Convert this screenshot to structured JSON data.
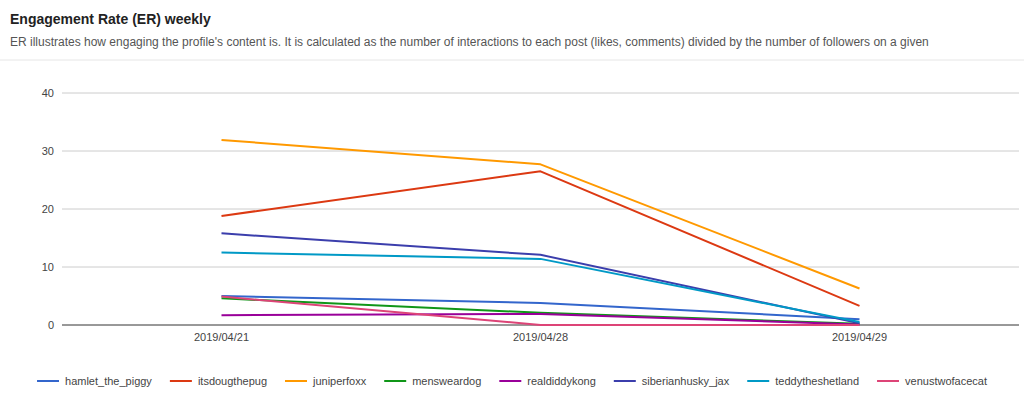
{
  "chart_data": {
    "type": "line",
    "title": "Engagement Rate (ER) weekly",
    "subtitle": "ER illustrates how engaging the profile's content is. It is calculated as the number of interactions to each post (likes, comments) divided by the number of followers on a given",
    "categories": [
      "2019/04/21",
      "2019/04/28",
      "2019/04/29"
    ],
    "series": [
      {
        "name": "hamlet_the_piggy",
        "color": "#3366cc",
        "values": [
          5.0,
          3.8,
          1.0
        ]
      },
      {
        "name": "itsdougthepug",
        "color": "#dc3912",
        "values": [
          18.8,
          26.5,
          3.3
        ]
      },
      {
        "name": "juniperfoxx",
        "color": "#ff9900",
        "values": [
          31.9,
          27.7,
          6.3
        ]
      },
      {
        "name": "mensweardog",
        "color": "#109618",
        "values": [
          4.6,
          2.1,
          0.2
        ]
      },
      {
        "name": "realdiddykong",
        "color": "#990099",
        "values": [
          1.7,
          1.9,
          0.1
        ]
      },
      {
        "name": "siberianhusky_jax",
        "color": "#3b3eac",
        "values": [
          15.8,
          12.1,
          0.3
        ]
      },
      {
        "name": "teddytheshetland",
        "color": "#0099c6",
        "values": [
          12.5,
          11.4,
          0.5
        ]
      },
      {
        "name": "venustwofacecat",
        "color": "#dd4477",
        "values": [
          4.9,
          0.0,
          0.0
        ]
      }
    ],
    "ylim": [
      0,
      40
    ],
    "yticks": [
      0,
      10,
      20,
      30,
      40
    ],
    "grid": true,
    "legend": "bottom"
  }
}
